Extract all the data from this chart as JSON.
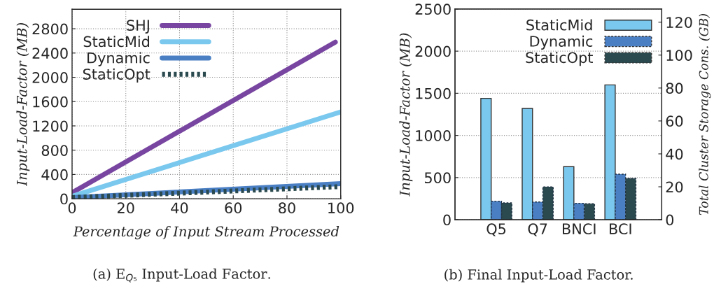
{
  "chart_data": [
    {
      "type": "line",
      "xlabel": "Percentage of Input Stream Processed",
      "ylabel": "Input-Load-Factor (MB)",
      "xlim": [
        0,
        100
      ],
      "xticks": [
        0,
        20,
        40,
        60,
        80,
        100
      ],
      "ylim": [
        0,
        3120
      ],
      "yticks": [
        0,
        400,
        800,
        1200,
        1600,
        2000,
        2400,
        2800
      ],
      "grid": true,
      "legend": "top left",
      "annotations": [
        "(a) E$_{Q₅}$ Input-Load Factor."
      ],
      "series": [
        {
          "name": "SHJ",
          "color": "#7846a0",
          "x": [
            0,
            98
          ],
          "values": [
            100,
            2580
          ],
          "line_style": "solid"
        },
        {
          "name": "StaticMid",
          "color": "#7ac8ee",
          "x": [
            0,
            100
          ],
          "values": [
            40,
            1430
          ],
          "line_style": "solid"
        },
        {
          "name": "Dynamic",
          "color": "#4a7fc4",
          "x": [
            0,
            100
          ],
          "values": [
            20,
            250
          ],
          "line_style": "solid"
        },
        {
          "name": "StaticOpt",
          "color": "#2b4a4f",
          "x": [
            0,
            100
          ],
          "values": [
            20,
            200
          ],
          "line_style": "dotted"
        }
      ]
    },
    {
      "type": "bar",
      "categories": [
        "Q5",
        "Q7",
        "BNCI",
        "BCI"
      ],
      "ylabel": "Input-Load-Factor (MB)",
      "y2label": "Total Cluster Storage Cons. (GB)",
      "ylim": [
        0,
        2500
      ],
      "yticks": [
        0,
        500,
        1000,
        1500,
        2000,
        2500
      ],
      "y2lim": [
        0,
        128
      ],
      "y2ticks": [
        0,
        20,
        40,
        60,
        80,
        100,
        120
      ],
      "grid": "y",
      "legend": "top right",
      "annotations": [
        "(b) Final Input-Load Factor."
      ],
      "series": [
        {
          "name": "StaticMid",
          "color": "#7ac8ee",
          "values": [
            1440,
            1320,
            630,
            1600
          ],
          "line_style": "solid"
        },
        {
          "name": "Dynamic",
          "color": "#4a7fc4",
          "values": [
            220,
            210,
            195,
            540
          ],
          "line_style": "dashed"
        },
        {
          "name": "StaticOpt",
          "color": "#2b4a4f",
          "values": [
            200,
            390,
            190,
            490
          ],
          "line_style": "dashed"
        }
      ]
    }
  ]
}
